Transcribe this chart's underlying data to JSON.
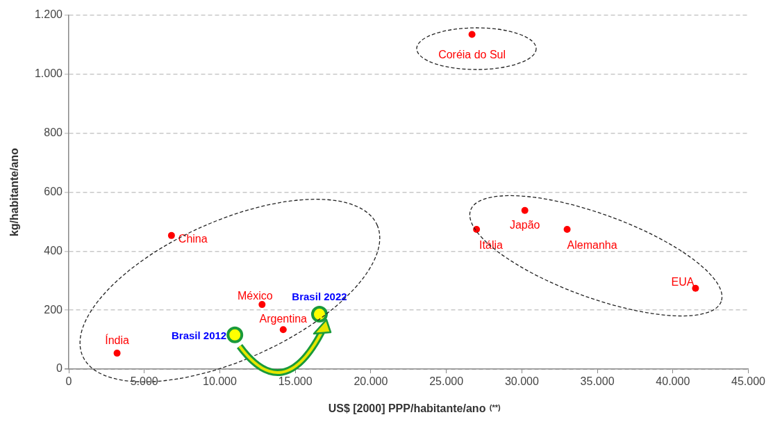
{
  "chart_data": {
    "type": "scatter",
    "xlabel": "US$ [2000] PPP/habitante/ano $^{(**)}$",
    "ylabel": "kg/habitante/ano",
    "xlim": [
      0,
      45000
    ],
    "xticks": [
      0,
      {
        "value": 5000,
        "label": "5.000"
      },
      {
        "value": 10000,
        "label": "10.000"
      },
      {
        "value": 15000,
        "label": "15.000"
      },
      {
        "value": 20000,
        "label": "20.000"
      },
      {
        "value": 25000,
        "label": "25.000"
      },
      {
        "value": 30000,
        "label": "30.000"
      },
      {
        "value": 35000,
        "label": "35.000"
      },
      {
        "value": 40000,
        "label": "40.000"
      },
      {
        "value": 45000,
        "label": "45.000"
      }
    ],
    "ylim": [
      0,
      1200
    ],
    "yticks": [
      0,
      200,
      400,
      600,
      800,
      {
        "value": 1000,
        "label": "1.000"
      },
      {
        "value": 1200,
        "label": "1.200"
      }
    ],
    "grid": "y",
    "marker": "circle",
    "series": [
      {
        "color": "#ff0000",
        "x": [
          26700,
          6800,
          27000,
          30200,
          33000,
          41500,
          12800,
          14200,
          3200
        ],
        "values": [
          1135,
          453,
          474,
          538,
          474,
          274,
          219,
          134,
          54
        ]
      },
      {
        "color": "#ffff00",
        "x": [
          11000,
          16600
        ],
        "values": [
          116,
          186
        ]
      }
    ],
    "annotations": [
      {
        "text": "Coréia do Sul",
        "x": 26700,
        "y": 1135
      },
      {
        "text": "China",
        "x": 6800,
        "y": 453
      },
      {
        "text": "Itália",
        "x": 27000,
        "y": 474
      },
      {
        "text": "Japão",
        "x": 30200,
        "y": 538
      },
      {
        "text": "Alemanha",
        "x": 33000,
        "y": 474
      },
      {
        "text": "EUA",
        "x": 41500,
        "y": 274
      },
      {
        "text": "México",
        "x": 12800,
        "y": 219
      },
      {
        "text": "Argentina",
        "x": 14200,
        "y": 134
      },
      {
        "text": "Índia",
        "x": 3200,
        "y": 54
      },
      {
        "text": "Brasil 2012",
        "x": 11000,
        "y": 116
      },
      {
        "text": "Brasil 2022",
        "x": 16600,
        "y": 186
      }
    ]
  }
}
